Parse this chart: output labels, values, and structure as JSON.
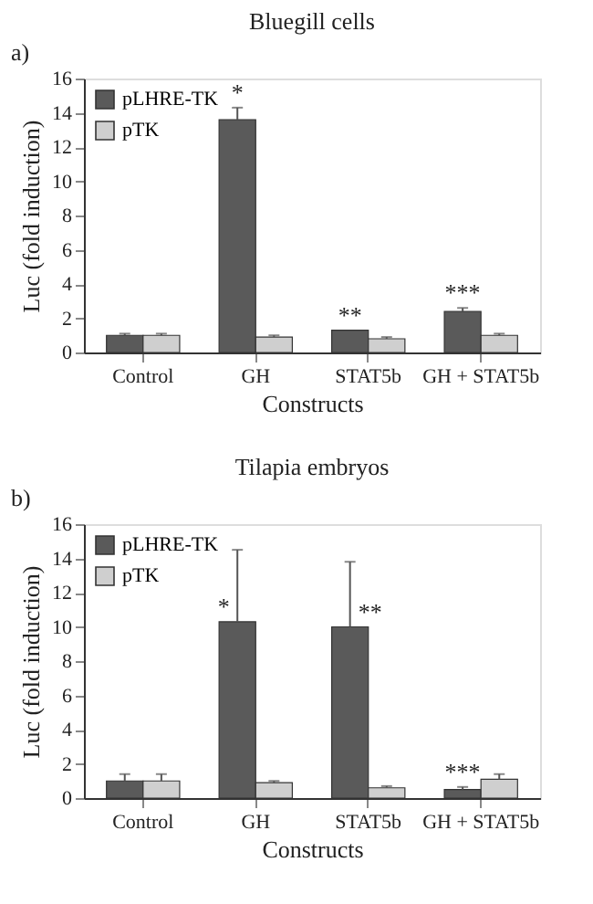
{
  "chart_data": [
    {
      "type": "bar",
      "title": "Bluegill cells",
      "xlabel": "Constructs",
      "ylabel": "Luc (fold induction)",
      "categories": [
        "Control",
        "GH",
        "STAT5b",
        "GH + STAT5b"
      ],
      "series": [
        {
          "name": "pLHRE-TK",
          "color": "#5a5a5a",
          "values": [
            1.0,
            13.6,
            1.3,
            2.4
          ],
          "errors": [
            [
              1.0,
              1.1
            ],
            [
              13.6,
              14.3
            ],
            null,
            [
              2.4,
              2.6
            ]
          ]
        },
        {
          "name": "pTK",
          "color": "#cfcfcf",
          "values": [
            1.0,
            0.9,
            0.8,
            1.0
          ],
          "errors": [
            [
              1.0,
              1.1
            ],
            [
              0.9,
              1.0
            ],
            [
              0.8,
              0.9
            ],
            [
              1.0,
              1.1
            ]
          ]
        }
      ],
      "ylim": [
        0,
        16
      ],
      "yticks": [
        0,
        2,
        4,
        6,
        8,
        10,
        12,
        14,
        16
      ],
      "grid": false,
      "legend": "top left",
      "annotations": [
        "a)",
        {
          "text": "*",
          "x": "GH",
          "y": 13.6
        },
        {
          "text": "**",
          "x": "STAT5b",
          "y": 1.3
        },
        {
          "text": "***",
          "x": "GH + STAT5b",
          "y": 2.4
        }
      ]
    },
    {
      "type": "bar",
      "title": "Tilapia embryos",
      "xlabel": "Constructs",
      "ylabel": "Luc (fold induction)",
      "categories": [
        "Control",
        "GH",
        "STAT5b",
        "GH + STAT5b"
      ],
      "series": [
        {
          "name": "pLHRE-TK",
          "color": "#5a5a5a",
          "values": [
            1.0,
            10.3,
            10.0,
            0.5
          ],
          "errors": [
            [
              1.0,
              1.4
            ],
            [
              10.3,
              14.5
            ],
            [
              10.0,
              13.8
            ],
            [
              0.5,
              0.65
            ]
          ]
        },
        {
          "name": "pTK",
          "color": "#cfcfcf",
          "values": [
            1.0,
            0.9,
            0.6,
            1.1
          ],
          "errors": [
            [
              1.0,
              1.4
            ],
            [
              0.9,
              1.0
            ],
            [
              0.6,
              0.7
            ],
            [
              1.1,
              1.4
            ]
          ]
        }
      ],
      "ylim": [
        0,
        16
      ],
      "yticks": [
        0,
        2,
        4,
        6,
        8,
        10,
        12,
        14,
        16
      ],
      "grid": false,
      "legend": "top left",
      "annotations": [
        "b)",
        {
          "text": "*",
          "x": "GH",
          "y": 10.3
        },
        {
          "text": "**",
          "x": "STAT5b",
          "y": 10.0
        },
        {
          "text": "***",
          "x": "GH + STAT5b",
          "y": 0.5
        }
      ]
    }
  ]
}
